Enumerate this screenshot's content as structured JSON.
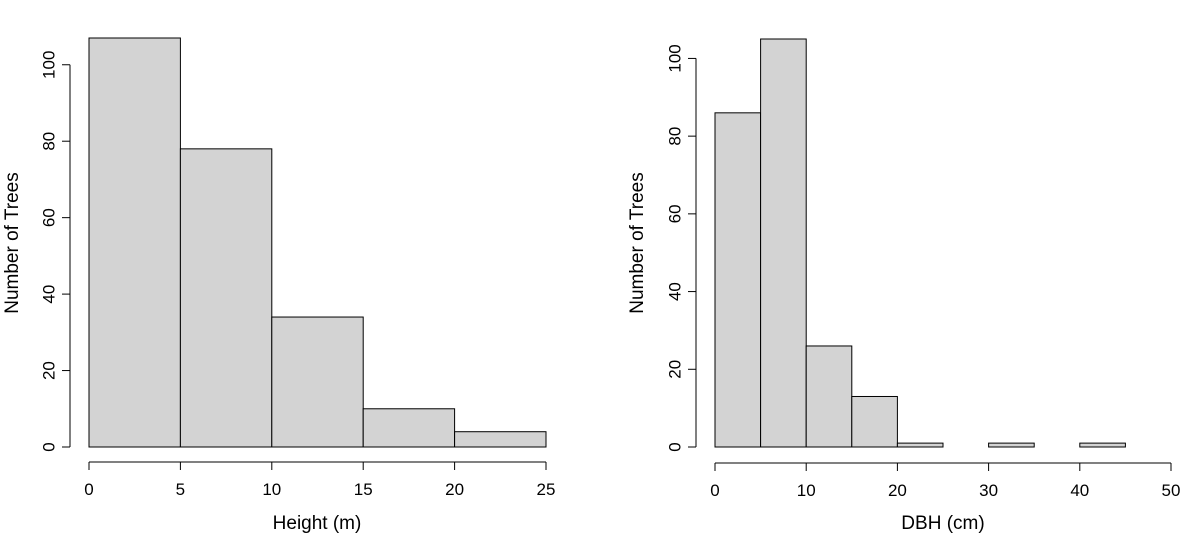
{
  "chart_data": [
    {
      "type": "bar",
      "title": "",
      "xlabel": "Height (m)",
      "ylabel": "Number of Trees",
      "bin_edges": [
        0,
        5,
        10,
        15,
        20,
        25
      ],
      "values": [
        107,
        78,
        34,
        10,
        4
      ],
      "xlim": [
        0,
        25
      ],
      "ylim": [
        0,
        107
      ],
      "xticks": [
        0,
        5,
        10,
        15,
        20,
        25
      ],
      "yticks": [
        0,
        20,
        40,
        60,
        80,
        100
      ],
      "bar_color": "#d3d3d3",
      "grid": false
    },
    {
      "type": "bar",
      "title": "",
      "xlabel": "DBH (cm)",
      "ylabel": "Number of Trees",
      "bin_edges": [
        0,
        5,
        10,
        15,
        20,
        25,
        30,
        35,
        40,
        45
      ],
      "values": [
        86,
        105,
        26,
        13,
        1,
        0,
        1,
        0,
        1
      ],
      "xlim": [
        0,
        50
      ],
      "ylim": [
        0,
        105
      ],
      "xticks": [
        0,
        10,
        20,
        30,
        40,
        50
      ],
      "yticks": [
        0,
        20,
        40,
        60,
        80,
        100
      ],
      "bar_color": "#d3d3d3",
      "grid": false
    }
  ]
}
